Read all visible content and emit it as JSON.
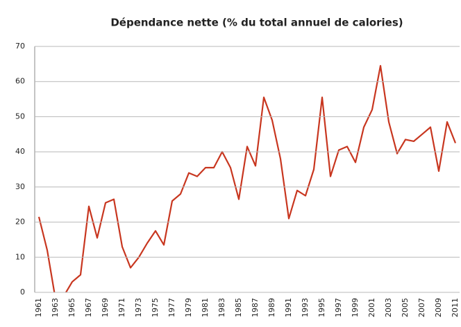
{
  "chart_data": {
    "type": "line",
    "title": "Dépendance nette (% du total annuel de calories)",
    "categories": [
      "1961",
      null,
      "1963",
      null,
      "1965",
      null,
      "1967",
      null,
      "1969",
      null,
      "1971",
      null,
      "1973",
      null,
      "1975",
      null,
      "1977",
      null,
      "1979",
      null,
      "1981",
      null,
      "1983",
      null,
      "1985",
      null,
      "1987",
      null,
      "1989",
      null,
      "1991",
      null,
      "1993",
      null,
      "1995",
      null,
      "1997",
      null,
      "1999",
      null,
      "2001",
      null,
      "2003",
      null,
      "2005",
      null,
      "2007",
      null,
      "2009",
      null,
      "2011"
    ],
    "series": [
      {
        "color": "#c8361f",
        "values": [
          21.5,
          12,
          -2,
          -1,
          3,
          5,
          24.5,
          15.5,
          25.5,
          26.5,
          13,
          7,
          10,
          14,
          17.5,
          13.5,
          26,
          28,
          34,
          33,
          35.5,
          35.5,
          40,
          35.5,
          26.5,
          41.5,
          36,
          55.5,
          49,
          38,
          21,
          29,
          27.5,
          35,
          55.5,
          33,
          40.5,
          41.5,
          37,
          47,
          52,
          64.5,
          48.5,
          39.5,
          43.5,
          43,
          45,
          47,
          34.5,
          48.5,
          42.5
        ]
      }
    ],
    "ylim": [
      0,
      70
    ],
    "yticks": [
      0,
      10,
      20,
      30,
      40,
      50,
      60,
      70
    ],
    "grid": true
  }
}
